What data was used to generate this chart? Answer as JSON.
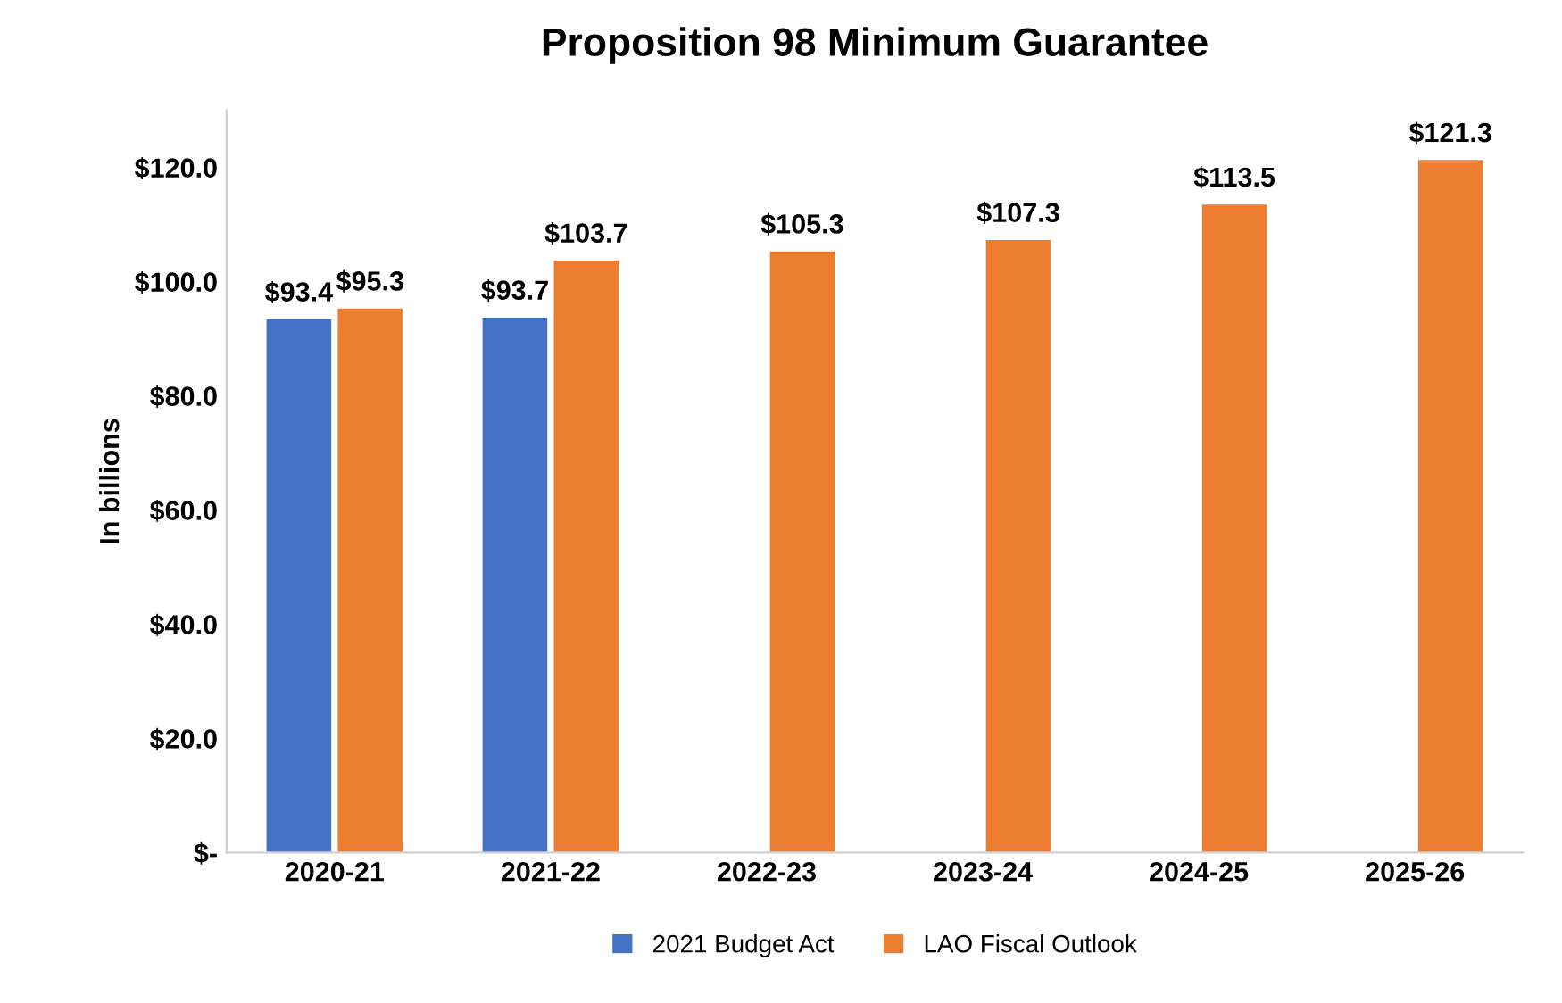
{
  "chart_data": {
    "type": "bar",
    "title": "Proposition 98 Minimum Guarantee",
    "ylabel": "In billions",
    "categories": [
      "2020-21",
      "2021-22",
      "2022-23",
      "2023-24",
      "2024-25",
      "2025-26"
    ],
    "series": [
      {
        "name": "2021 Budget Act",
        "color": "#4472c4",
        "values": [
          93.4,
          93.7,
          null,
          null,
          null,
          null
        ],
        "value_labels": [
          "$93.4",
          "$93.7",
          null,
          null,
          null,
          null
        ]
      },
      {
        "name": "LAO Fiscal Outlook",
        "color": "#ed7d31",
        "values": [
          95.3,
          103.7,
          105.3,
          107.3,
          113.5,
          121.3
        ],
        "value_labels": [
          "$95.3",
          "$103.7",
          "$105.3",
          "$107.3",
          "$113.5",
          "$121.3"
        ]
      }
    ],
    "ylim": [
      0,
      130
    ],
    "yticks": [
      {
        "value": 0,
        "label": "$-"
      },
      {
        "value": 20,
        "label": "$20.0"
      },
      {
        "value": 40,
        "label": "$40.0"
      },
      {
        "value": 60,
        "label": "$60.0"
      },
      {
        "value": 80,
        "label": "$80.0"
      },
      {
        "value": 100,
        "label": "$100.0"
      },
      {
        "value": 120,
        "label": "$120.0"
      }
    ],
    "grid": false,
    "legend": "bottom"
  }
}
